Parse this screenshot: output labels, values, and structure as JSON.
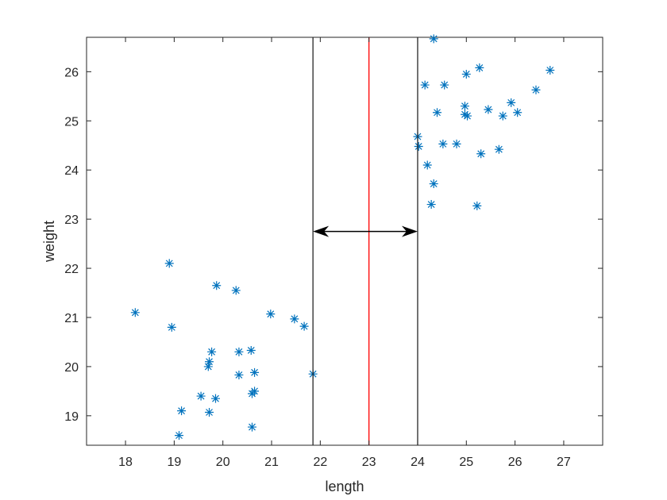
{
  "chart_data": {
    "type": "scatter",
    "xlabel": "length",
    "ylabel": "weight",
    "xlim": [
      17.2,
      27.8
    ],
    "ylim": [
      18.4,
      26.7
    ],
    "xticks": [
      18,
      19,
      20,
      21,
      22,
      23,
      24,
      25,
      26,
      27
    ],
    "yticks": [
      19,
      20,
      21,
      22,
      23,
      24,
      25,
      26
    ],
    "marker": "asterisk",
    "marker_color": "#0072BD",
    "grid": false,
    "series": [
      {
        "points": [
          [
            18.2,
            21.1
          ],
          [
            18.9,
            22.1
          ],
          [
            18.95,
            20.8
          ],
          [
            19.1,
            18.6
          ],
          [
            19.15,
            19.1
          ],
          [
            19.55,
            19.4
          ],
          [
            19.7,
            20.0
          ],
          [
            19.72,
            20.1
          ],
          [
            19.72,
            19.07
          ],
          [
            19.77,
            20.3
          ],
          [
            19.85,
            19.35
          ],
          [
            19.87,
            21.65
          ],
          [
            20.27,
            21.55
          ],
          [
            20.33,
            20.3
          ],
          [
            20.33,
            19.83
          ],
          [
            20.58,
            20.33
          ],
          [
            20.6,
            19.45
          ],
          [
            20.6,
            18.77
          ],
          [
            20.65,
            19.88
          ],
          [
            20.65,
            19.5
          ],
          [
            20.98,
            21.07
          ],
          [
            21.47,
            20.97
          ],
          [
            21.67,
            20.82
          ],
          [
            21.85,
            19.85
          ],
          [
            24.0,
            24.68
          ],
          [
            24.02,
            24.48
          ],
          [
            24.15,
            25.73
          ],
          [
            24.2,
            24.1
          ],
          [
            24.28,
            23.3
          ],
          [
            24.33,
            23.72
          ],
          [
            24.33,
            26.67
          ],
          [
            24.4,
            25.17
          ],
          [
            24.52,
            24.53
          ],
          [
            24.55,
            25.73
          ],
          [
            24.8,
            24.53
          ],
          [
            24.97,
            25.3
          ],
          [
            24.97,
            25.13
          ],
          [
            25.0,
            25.95
          ],
          [
            25.02,
            25.1
          ],
          [
            25.22,
            23.27
          ],
          [
            25.27,
            26.08
          ],
          [
            25.3,
            24.33
          ],
          [
            25.45,
            25.23
          ],
          [
            25.67,
            24.42
          ],
          [
            25.75,
            25.1
          ],
          [
            25.92,
            25.37
          ],
          [
            26.05,
            25.17
          ],
          [
            26.43,
            25.63
          ],
          [
            26.72,
            26.03
          ]
        ]
      }
    ],
    "vertical_lines": [
      {
        "x": 21.85,
        "color": "#262626"
      },
      {
        "x": 23.0,
        "color": "#ff0000"
      },
      {
        "x": 24.0,
        "color": "#262626"
      }
    ],
    "double_arrow": {
      "x1": 21.85,
      "x2": 24.0,
      "y": 22.75,
      "color": "#000000"
    }
  }
}
